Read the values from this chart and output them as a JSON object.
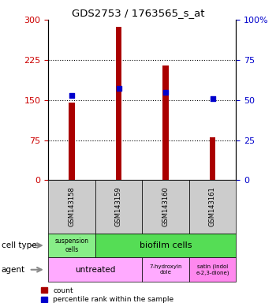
{
  "title": "GDS2753 / 1763565_s_at",
  "samples": [
    "GSM143158",
    "GSM143159",
    "GSM143160",
    "GSM143161"
  ],
  "count_values": [
    145,
    287,
    215,
    80
  ],
  "percentile_values": [
    53,
    57,
    55,
    51
  ],
  "ylim_left": [
    0,
    300
  ],
  "ylim_right": [
    0,
    100
  ],
  "yticks_left": [
    0,
    75,
    150,
    225,
    300
  ],
  "yticks_right": [
    0,
    25,
    50,
    75,
    100
  ],
  "yticklabels_right": [
    "0",
    "25",
    "50",
    "75",
    "100%"
  ],
  "bar_color": "#aa0000",
  "dot_color": "#0000cc",
  "suspension_color": "#88ee88",
  "biofilm_color": "#55dd55",
  "untreated_color": "#ffaaff",
  "agent2_color": "#ffaaff",
  "agent3_color": "#ff88ee",
  "sample_box_color": "#cccccc",
  "tick_label_color_left": "#cc0000",
  "tick_label_color_right": "#0000cc",
  "bar_width": 0.12,
  "dot_size": 18
}
